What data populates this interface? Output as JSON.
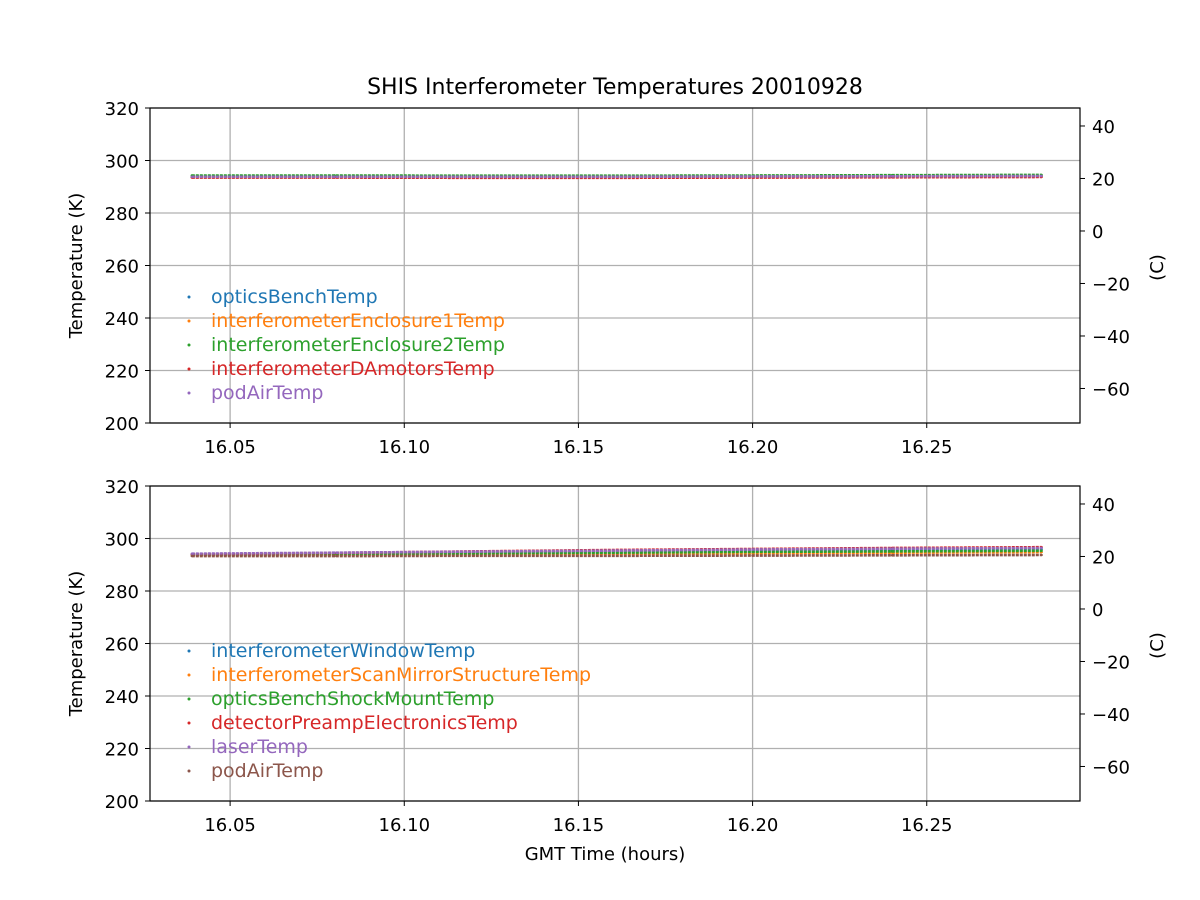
{
  "figure": {
    "title": "SHIS Interferometer Temperatures 20010928"
  },
  "chart_data": [
    {
      "type": "scatter",
      "title": "SHIS Interferometer Temperatures 20010928",
      "xlabel": "",
      "ylabel": "Temperature (K)",
      "ylabel_right": "(C)",
      "xlim": [
        16.027,
        16.294
      ],
      "ylim": [
        200,
        320
      ],
      "ylim_right": [
        -73.15,
        46.85
      ],
      "xticks": [
        "16.05",
        "16.10",
        "16.15",
        "16.20",
        "16.25"
      ],
      "yticks": [
        "200",
        "220",
        "240",
        "260",
        "280",
        "300",
        "320"
      ],
      "yticks_right": [
        "−60",
        "−40",
        "−20",
        "0",
        "20",
        "40"
      ],
      "grid": true,
      "legend_position": "lower-left",
      "series": [
        {
          "name": "opticsBenchTemp",
          "color": "#1f77b4",
          "x": [
            16.039,
            16.08,
            16.12,
            16.16,
            16.2,
            16.24,
            16.283
          ],
          "y": [
            294.0,
            294.0,
            293.9,
            293.9,
            294.0,
            294.1,
            294.1
          ]
        },
        {
          "name": "interferometerEnclosure1Temp",
          "color": "#ff7f0e",
          "x": [
            16.039,
            16.08,
            16.12,
            16.16,
            16.2,
            16.24,
            16.283
          ],
          "y": [
            293.6,
            293.6,
            293.7,
            293.7,
            293.8,
            293.9,
            294.0
          ]
        },
        {
          "name": "interferometerEnclosure2Temp",
          "color": "#2ca02c",
          "x": [
            16.039,
            16.08,
            16.12,
            16.16,
            16.2,
            16.24,
            16.283
          ],
          "y": [
            294.3,
            294.3,
            294.2,
            294.2,
            294.3,
            294.4,
            294.5
          ]
        },
        {
          "name": "interferometerDAmotorsTemp",
          "color": "#d62728",
          "x": [
            16.039,
            16.08,
            16.12,
            16.16,
            16.2,
            16.24,
            16.283
          ],
          "y": [
            293.5,
            293.5,
            293.4,
            293.4,
            293.5,
            293.6,
            293.7
          ]
        },
        {
          "name": "podAirTemp",
          "color": "#9467bd",
          "x": [
            16.039,
            16.08,
            16.12,
            16.16,
            16.2,
            16.24,
            16.283
          ],
          "y": [
            293.8,
            293.8,
            293.8,
            293.8,
            293.9,
            294.0,
            294.1
          ]
        }
      ]
    },
    {
      "type": "scatter",
      "title": "",
      "xlabel": "GMT Time (hours)",
      "ylabel": "Temperature (K)",
      "ylabel_right": "(C)",
      "xlim": [
        16.027,
        16.294
      ],
      "ylim": [
        200,
        320
      ],
      "ylim_right": [
        -73.15,
        46.85
      ],
      "xticks": [
        "16.05",
        "16.10",
        "16.15",
        "16.20",
        "16.25"
      ],
      "yticks": [
        "200",
        "220",
        "240",
        "260",
        "280",
        "300",
        "320"
      ],
      "yticks_right": [
        "−60",
        "−40",
        "−20",
        "0",
        "20",
        "40"
      ],
      "grid": true,
      "legend_position": "lower-left",
      "series": [
        {
          "name": "interferometerWindowTemp",
          "color": "#1f77b4",
          "x": [
            16.039,
            16.08,
            16.12,
            16.16,
            16.2,
            16.24,
            16.283
          ],
          "y": [
            293.8,
            294.2,
            294.6,
            295.0,
            295.3,
            295.6,
            295.9
          ]
        },
        {
          "name": "interferometerScanMirrorStructureTemp",
          "color": "#ff7f0e",
          "x": [
            16.039,
            16.08,
            16.12,
            16.16,
            16.2,
            16.24,
            16.283
          ],
          "y": [
            293.6,
            293.8,
            294.0,
            294.2,
            294.4,
            294.6,
            294.8
          ]
        },
        {
          "name": "opticsBenchShockMountTemp",
          "color": "#2ca02c",
          "x": [
            16.039,
            16.08,
            16.12,
            16.16,
            16.2,
            16.24,
            16.283
          ],
          "y": [
            293.9,
            294.1,
            294.4,
            294.6,
            294.9,
            295.1,
            295.3
          ]
        },
        {
          "name": "detectorPreampElectronicsTemp",
          "color": "#d62728",
          "x": [
            16.039,
            16.08,
            16.12,
            16.16,
            16.2,
            16.24,
            16.283
          ],
          "y": [
            294.0,
            294.5,
            295.1,
            295.6,
            296.0,
            296.4,
            296.7
          ]
        },
        {
          "name": "laserTemp",
          "color": "#9467bd",
          "x": [
            16.039,
            16.08,
            16.12,
            16.16,
            16.2,
            16.24,
            16.283
          ],
          "y": [
            294.2,
            294.6,
            295.0,
            295.4,
            295.8,
            296.1,
            296.4
          ]
        },
        {
          "name": "podAirTemp",
          "color": "#8c564b",
          "x": [
            16.039,
            16.08,
            16.12,
            16.16,
            16.2,
            16.24,
            16.283
          ],
          "y": [
            293.3,
            293.3,
            293.4,
            293.4,
            293.5,
            293.6,
            293.7
          ]
        }
      ]
    }
  ]
}
